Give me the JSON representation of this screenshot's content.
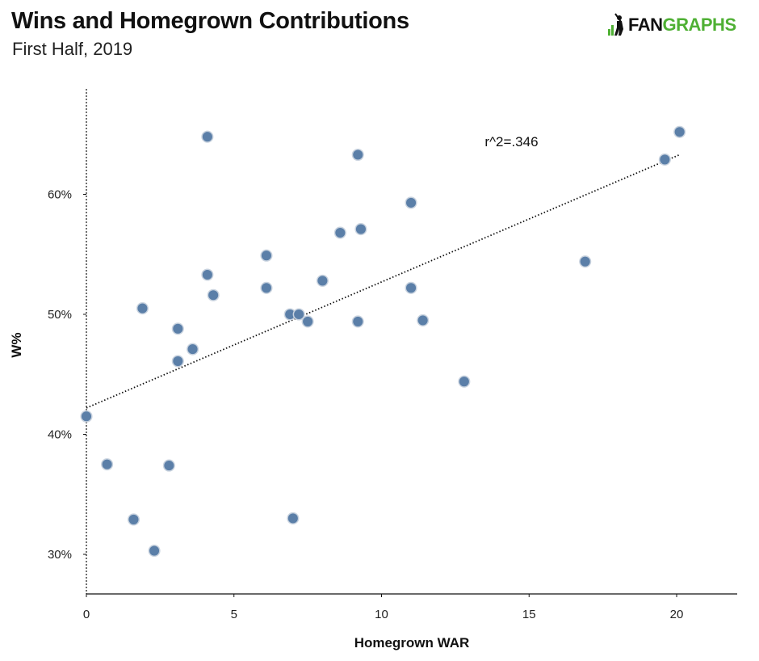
{
  "header": {
    "title": "Wins and Homegrown Contributions",
    "subtitle": "First Half, 2019",
    "logo_text_a": "FAN",
    "logo_text_b": "GRAPHS"
  },
  "colors": {
    "point_fill": "#5b7fa8",
    "point_stroke": "#c9d3df",
    "trend": "#111111",
    "brand_green": "#4fb034"
  },
  "chart_data": {
    "type": "scatter",
    "xlabel": "Homegrown WAR",
    "ylabel": "W%",
    "xlim": [
      -0.1,
      22
    ],
    "ylim": [
      27,
      69
    ],
    "x_ticks": [
      0,
      5,
      10,
      15,
      20
    ],
    "x_tick_labels": [
      "0",
      "5",
      "10",
      "15",
      "20"
    ],
    "y_ticks": [
      30,
      40,
      50,
      60
    ],
    "y_tick_labels": [
      "30%",
      "40%",
      "50%",
      "60%"
    ],
    "grid": false,
    "annotation": "r^2=.346",
    "annotation_at": [
      13.5,
      64
    ],
    "trendline": {
      "x": [
        0,
        20.1
      ],
      "y": [
        42.2,
        63.3
      ]
    },
    "points": [
      {
        "x": 4.1,
        "y": 64.8
      },
      {
        "x": 9.2,
        "y": 63.3
      },
      {
        "x": 20.1,
        "y": 65.2
      },
      {
        "x": 19.6,
        "y": 62.9
      },
      {
        "x": 11.0,
        "y": 59.3
      },
      {
        "x": 8.6,
        "y": 56.8
      },
      {
        "x": 9.3,
        "y": 57.1
      },
      {
        "x": 6.1,
        "y": 54.9
      },
      {
        "x": 4.1,
        "y": 53.3
      },
      {
        "x": 6.1,
        "y": 52.2
      },
      {
        "x": 8.0,
        "y": 52.8
      },
      {
        "x": 11.0,
        "y": 52.2
      },
      {
        "x": 4.3,
        "y": 51.6
      },
      {
        "x": 16.9,
        "y": 54.4
      },
      {
        "x": 1.9,
        "y": 50.5
      },
      {
        "x": 6.9,
        "y": 50.0
      },
      {
        "x": 7.2,
        "y": 50.0
      },
      {
        "x": 7.5,
        "y": 49.4
      },
      {
        "x": 9.2,
        "y": 49.4
      },
      {
        "x": 11.4,
        "y": 49.5
      },
      {
        "x": 3.1,
        "y": 48.8
      },
      {
        "x": 3.6,
        "y": 47.1
      },
      {
        "x": 3.1,
        "y": 46.1
      },
      {
        "x": 12.8,
        "y": 44.4
      },
      {
        "x": 0.0,
        "y": 41.5
      },
      {
        "x": 0.7,
        "y": 37.5
      },
      {
        "x": 2.8,
        "y": 37.4
      },
      {
        "x": 1.6,
        "y": 32.9
      },
      {
        "x": 7.0,
        "y": 33.0
      },
      {
        "x": 2.3,
        "y": 30.3
      }
    ]
  }
}
